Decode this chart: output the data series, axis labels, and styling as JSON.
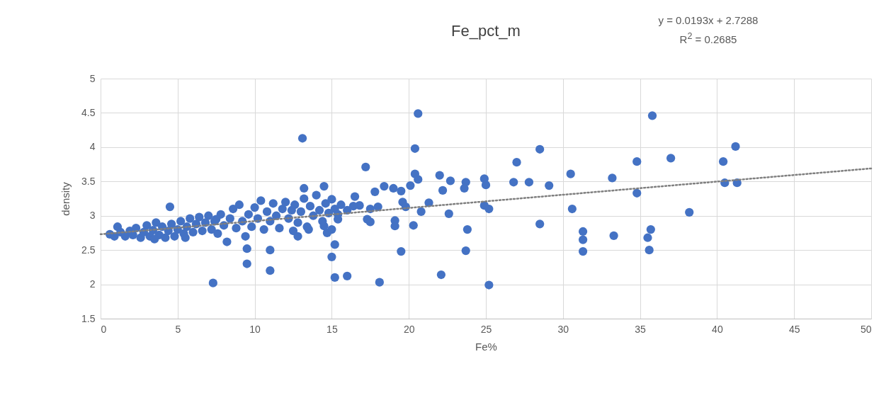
{
  "chart_data": {
    "type": "scatter",
    "title": "Fe_pct_m",
    "xlabel": "Fe%",
    "ylabel": "density",
    "annotations": [
      "y = 0.0193x + 2.7288",
      "R$^{2}$ = 0.2685"
    ],
    "xlim": [
      0,
      50
    ],
    "xticks": [
      0,
      5,
      10,
      15,
      20,
      25,
      30,
      35,
      40,
      45,
      50
    ],
    "ylim": [
      1.5,
      5
    ],
    "yticks": [
      1.5,
      2,
      2.5,
      3,
      3.5,
      4,
      4.5,
      5
    ],
    "grid": true,
    "series": [
      {
        "color": "#4472c4",
        "marker": "circle",
        "x": [
          13.1,
          20.6,
          35.8,
          20.4,
          28.5,
          41.2,
          37,
          34.8,
          40.4,
          27,
          17.2,
          20.4,
          22,
          30.5,
          33.2,
          24.9,
          20.6,
          22.7,
          23.7,
          26.8,
          27.8,
          29.1,
          40.5,
          41.3,
          34.8,
          22.2,
          23.6,
          25,
          19,
          18.4,
          19.5,
          14.5,
          13.2,
          20.1,
          21.3,
          24.9,
          25.2,
          30.6,
          38.2,
          20.8,
          22.6,
          19.6,
          19.8,
          20.3,
          19.1,
          19.1,
          17.3,
          17.5,
          15.4,
          23.8,
          28.5,
          31.3,
          31.3,
          31.3,
          33.3,
          35.5,
          35.7,
          35.6,
          23.7,
          19.5,
          22.1,
          25.2,
          18.1,
          16,
          15.2,
          15.2,
          15,
          14.7,
          15,
          11,
          11,
          9.5,
          9.5,
          7.3,
          4.5,
          12.8,
          14.5,
          16.5,
          17.8,
          18,
          17.5,
          16.8,
          0.6,
          0.9,
          1.1,
          1.3,
          1.6,
          1.9,
          2.1,
          2.3,
          2.6,
          2.8,
          3.0,
          3.2,
          3.4,
          3.6,
          3.8,
          4.0,
          4.2,
          4.4,
          4.6,
          4.8,
          5.0,
          5.2,
          5.4,
          5.6,
          5.8,
          6.0,
          6.2,
          6.4,
          6.6,
          6.8,
          7.0,
          7.2,
          7.4,
          7.6,
          7.8,
          8.0,
          8.2,
          8.4,
          8.6,
          8.8,
          9.0,
          9.2,
          9.4,
          9.6,
          9.8,
          10.0,
          10.2,
          10.4,
          10.6,
          10.8,
          11.0,
          11.2,
          11.4,
          11.6,
          11.8,
          12.0,
          12.2,
          12.4,
          12.6,
          12.8,
          13.0,
          13.2,
          13.4,
          13.6,
          13.8,
          14.0,
          14.2,
          14.4,
          14.6,
          14.8,
          15.0,
          15.2,
          15.4,
          15.6,
          16.0,
          16.4,
          12.5,
          13.5,
          7.5,
          5.5,
          3.5
        ],
        "values": [
          4.13,
          4.49,
          4.46,
          3.98,
          3.97,
          4.01,
          3.84,
          3.79,
          3.79,
          3.78,
          3.71,
          3.61,
          3.59,
          3.61,
          3.55,
          3.54,
          3.53,
          3.51,
          3.49,
          3.49,
          3.49,
          3.44,
          3.48,
          3.48,
          3.33,
          3.37,
          3.4,
          3.45,
          3.4,
          3.43,
          3.36,
          3.43,
          3.4,
          3.44,
          3.19,
          3.15,
          3.1,
          3.1,
          3.05,
          3.06,
          3.03,
          3.2,
          3.13,
          2.86,
          2.93,
          2.85,
          2.95,
          2.91,
          2.95,
          2.8,
          2.88,
          2.77,
          2.65,
          2.48,
          2.71,
          2.68,
          2.8,
          2.5,
          2.49,
          2.48,
          2.14,
          1.99,
          2.03,
          2.12,
          2.1,
          2.58,
          2.4,
          2.75,
          2.8,
          2.5,
          2.2,
          2.52,
          2.3,
          2.02,
          3.13,
          2.7,
          2.85,
          3.28,
          3.35,
          3.13,
          3.1,
          3.15,
          2.73,
          2.7,
          2.84,
          2.76,
          2.7,
          2.78,
          2.72,
          2.82,
          2.68,
          2.76,
          2.86,
          2.7,
          2.79,
          2.9,
          2.72,
          2.84,
          2.68,
          2.78,
          2.88,
          2.7,
          2.8,
          2.92,
          2.74,
          2.84,
          2.96,
          2.76,
          2.88,
          2.98,
          2.78,
          2.9,
          3.0,
          2.8,
          2.92,
          2.74,
          3.02,
          2.86,
          2.62,
          2.96,
          3.1,
          2.82,
          3.16,
          2.92,
          2.7,
          3.02,
          2.84,
          3.12,
          2.96,
          3.22,
          2.8,
          3.06,
          2.92,
          3.18,
          3.0,
          2.82,
          3.1,
          3.2,
          2.96,
          3.08,
          3.16,
          2.9,
          3.06,
          3.25,
          2.84,
          3.14,
          3.0,
          3.3,
          3.08,
          2.92,
          3.18,
          3.04,
          3.24,
          3.1,
          3.02,
          3.16,
          3.08,
          3.14,
          2.78,
          2.8,
          2.95,
          2.68,
          2.66
        ]
      },
      {
        "type": "line",
        "color": "#7f7f7f",
        "line_style": "dotted",
        "x": [
          0,
          50
        ],
        "values": [
          2.73,
          3.69
        ]
      }
    ]
  }
}
